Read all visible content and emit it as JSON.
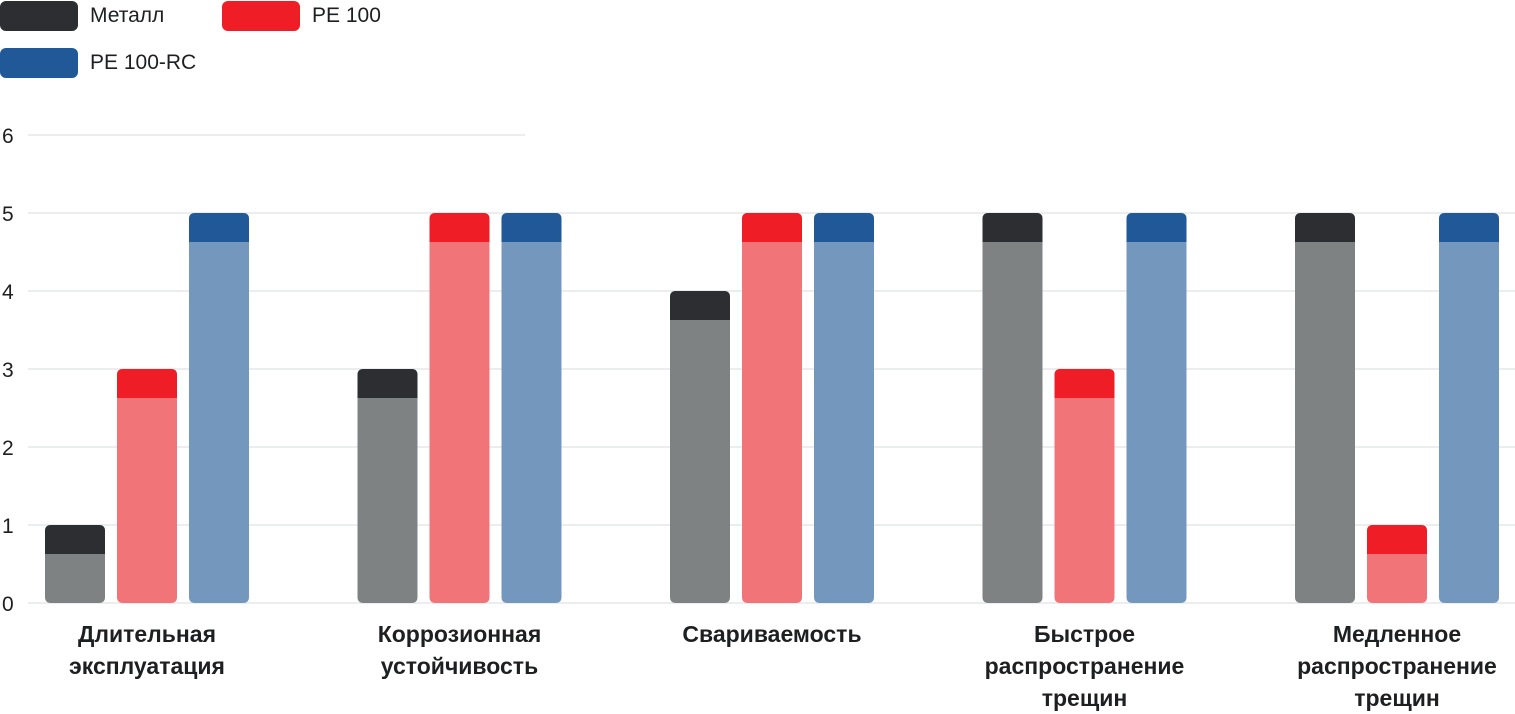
{
  "chart_data": {
    "type": "bar",
    "categories": [
      [
        "Длительная",
        "эксплуатация"
      ],
      [
        "Коррозионная",
        "устойчивость"
      ],
      [
        "Свариваемость"
      ],
      [
        "Быстрое",
        "распространение",
        "трещин"
      ],
      [
        "Медленное",
        "распространение",
        "трещин"
      ]
    ],
    "series": [
      {
        "name": "Металл",
        "values": [
          1,
          3,
          4,
          5,
          5
        ],
        "color": "#7e8283",
        "cap_color": "#2c2e31"
      },
      {
        "name": "PE 100",
        "values": [
          3,
          5,
          5,
          3,
          1
        ],
        "color": "#f07478",
        "cap_color": "#ee1d26"
      },
      {
        "name": "PE 100-RC",
        "values": [
          5,
          5,
          5,
          5,
          5
        ],
        "color": "#7498bd",
        "cap_color": "#215998"
      }
    ],
    "y_ticks": [
      "0",
      "1",
      "2",
      "3",
      "4",
      "5",
      "6"
    ],
    "ylim": [
      0,
      6
    ],
    "grid": true,
    "legend_position": "top-left",
    "title": "",
    "xlabel": "",
    "ylabel": ""
  }
}
